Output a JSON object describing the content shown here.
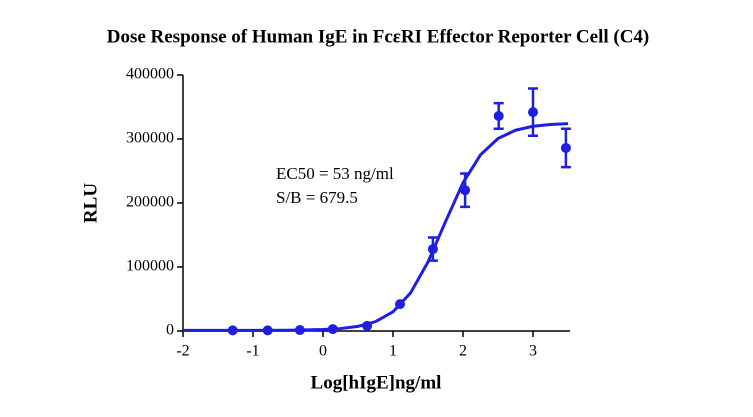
{
  "chart_data": {
    "type": "scatter",
    "title": "Dose Response of Human IgE in FcεRI Effector Reporter Cell (C4)",
    "x_label": "Log[hIgE]ng/ml",
    "y_label": "RLU",
    "annotations": [
      "EC50 = 53 ng/ml",
      "S/B = 679.5"
    ],
    "xlim": [
      -2,
      3.5
    ],
    "xticks": [
      -2,
      -1,
      0,
      1,
      2,
      3
    ],
    "ylim": [
      0,
      400000
    ],
    "yticks": [
      0,
      100000,
      200000,
      300000,
      400000
    ],
    "color": "#1f1fe0",
    "x": [
      -1.29,
      -0.79,
      -0.33,
      0.14,
      0.63,
      1.1,
      1.57,
      2.03,
      2.51,
      3.0,
      3.47
    ],
    "values": [
      1000,
      1000,
      1500,
      3000,
      8000,
      42000,
      128000,
      220000,
      336000,
      342000,
      286000
    ],
    "errors": [
      null,
      null,
      null,
      null,
      null,
      null,
      18000,
      26000,
      20000,
      37000,
      30000
    ],
    "fit": {
      "x": [
        -2,
        -1.5,
        -1,
        -0.5,
        0,
        0.25,
        0.5,
        0.75,
        1,
        1.25,
        1.5,
        1.75,
        2,
        2.25,
        2.5,
        2.75,
        3,
        3.25,
        3.5
      ],
      "values": [
        1000,
        1000,
        1050,
        1250,
        2270,
        3810,
        7225,
        14610,
        29960,
        59380,
        107900,
        170800,
        231500,
        275300,
        300700,
        313700,
        319900,
        322700,
        324000
      ]
    }
  }
}
